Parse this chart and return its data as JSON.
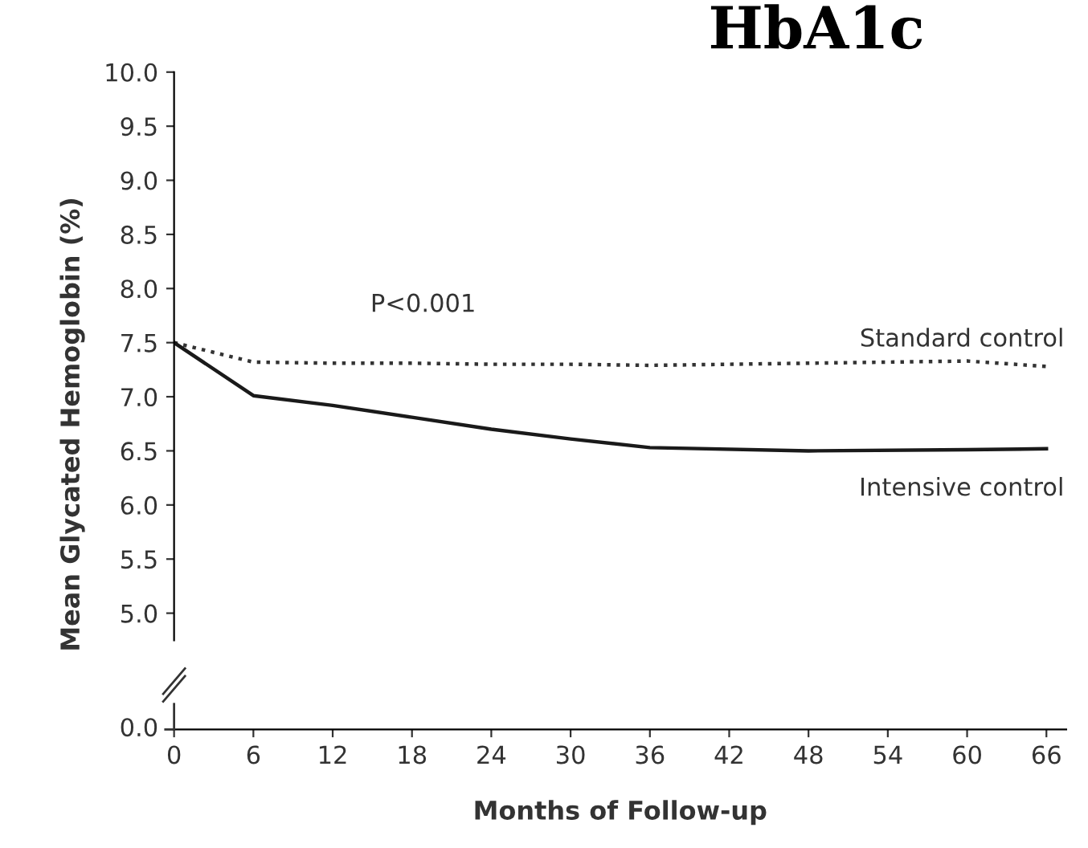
{
  "chart_data": {
    "type": "line",
    "title": "HbA1c",
    "ylabel": "Mean Glycated Hemoglobin (%)",
    "xlabel": "Months of Follow-up",
    "annotations": [
      "P<0.001",
      "0.0"
    ],
    "x": [
      0,
      6,
      12,
      18,
      24,
      30,
      36,
      48,
      60,
      66
    ],
    "series": [
      {
        "name": "Standard control",
        "color": "#333333",
        "line_style": "dotted",
        "values": [
          7.5,
          7.32,
          7.31,
          7.31,
          7.3,
          7.3,
          7.29,
          7.31,
          7.33,
          7.28
        ]
      },
      {
        "name": "Intensive control",
        "color": "#1a1a1a",
        "line_style": "solid",
        "values": [
          7.5,
          7.01,
          6.92,
          6.81,
          6.7,
          6.61,
          6.53,
          6.5,
          6.51,
          6.52
        ]
      }
    ],
    "xlim": [
      0,
      67.5
    ],
    "xticks": [
      0,
      6,
      12,
      18,
      24,
      30,
      36,
      42,
      48,
      54,
      60,
      66
    ],
    "ylim": [
      4.75,
      10.0
    ],
    "yticks": [
      {
        "value": 5.0,
        "label": "5.0"
      },
      {
        "value": 5.5,
        "label": "5.5"
      },
      {
        "value": 6.0,
        "label": "6.0"
      },
      {
        "value": 6.5,
        "label": "6.5"
      },
      {
        "value": 7.0,
        "label": "7.0"
      },
      {
        "value": 7.5,
        "label": "7.5"
      },
      {
        "value": 8.0,
        "label": "8.0"
      },
      {
        "value": 8.5,
        "label": "8.5"
      },
      {
        "value": 9.0,
        "label": "9.0"
      },
      {
        "value": 9.5,
        "label": "9.5"
      },
      {
        "value": 10.0,
        "label": "10.0"
      }
    ],
    "grid": false,
    "legend": false,
    "marker": "none"
  }
}
